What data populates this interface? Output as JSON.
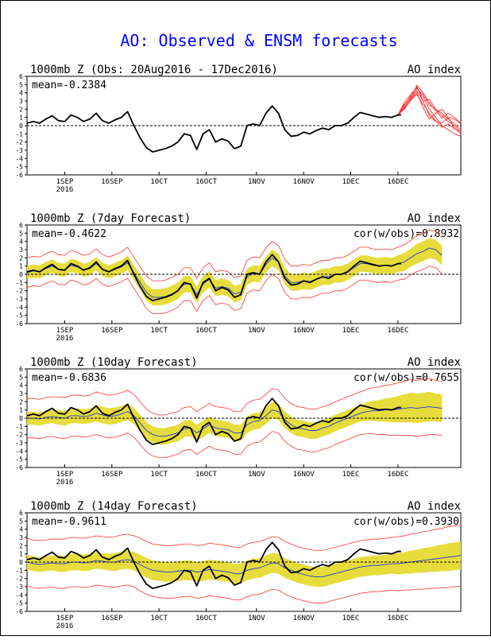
{
  "page": {
    "title": "AO: Observed & ENSM forecasts",
    "title_color": "#0000ff"
  },
  "axis": {
    "yticks": [
      "6",
      "5",
      "4",
      "3",
      "2",
      "1",
      "0",
      "-1",
      "-2",
      "-3",
      "-4",
      "-5",
      "-6"
    ],
    "xticks": [
      "1SEP",
      "16SEP",
      "10CT",
      "16OCT",
      "1NOV",
      "16NOV",
      "1DEC",
      "16DEC"
    ],
    "year_label": "2016"
  },
  "colors": {
    "obs": "#000000",
    "ens_mean": "#1e3cc8",
    "spread_fill": "#e6dc3c",
    "ens_bounds": "#ff3232",
    "zero_line": "#000000"
  },
  "panels": [
    {
      "title": "1000mb Z (Obs: 20Aug2016 - 17Dec2016)",
      "index_label": "AO index",
      "mean_label": "mean=-0.2384",
      "cor_label": ""
    },
    {
      "title": "1000mb Z (7day Forecast)",
      "index_label": "AO index",
      "mean_label": "mean=-0.4622",
      "cor_label": "cor(w/obs)=0.8932"
    },
    {
      "title": "1000mb Z (10day Forecast)",
      "index_label": "AO index",
      "mean_label": "mean=-0.6836",
      "cor_label": "cor(w/obs)=0.7655"
    },
    {
      "title": "1000mb Z (14day Forecast)",
      "index_label": "AO index",
      "mean_label": "mean=-0.9611",
      "cor_label": "cor(w/obs)=0.3930"
    }
  ],
  "chart_data": {
    "type": "line",
    "ylim": [
      -6,
      6
    ],
    "x_tick_days": [
      12,
      27,
      42,
      57,
      73,
      88,
      103,
      118
    ],
    "obs": {
      "x": [
        0,
        2,
        4,
        6,
        8,
        10,
        12,
        14,
        16,
        18,
        20,
        22,
        24,
        26,
        28,
        30,
        32,
        34,
        36,
        38,
        40,
        42,
        44,
        46,
        48,
        50,
        52,
        54,
        56,
        58,
        60,
        62,
        64,
        66,
        68,
        70,
        72,
        74,
        76,
        78,
        80,
        82,
        84,
        86,
        88,
        90,
        92,
        94,
        96,
        98,
        100,
        102,
        104,
        106,
        108,
        110,
        112,
        114,
        116,
        118,
        119
      ],
      "y": [
        0.3,
        0.5,
        0.3,
        0.8,
        1.2,
        0.6,
        0.5,
        1.3,
        1.0,
        0.5,
        0.8,
        1.5,
        0.6,
        0.3,
        0.7,
        1.0,
        1.7,
        0.0,
        -1.5,
        -2.7,
        -3.2,
        -3.0,
        -2.8,
        -2.5,
        -2.0,
        -1.0,
        -1.2,
        -2.9,
        -1.0,
        -0.5,
        -2.0,
        -1.6,
        -1.9,
        -2.8,
        -2.5,
        0.0,
        0.2,
        0.0,
        1.5,
        2.4,
        1.5,
        -0.5,
        -1.3,
        -1.2,
        -0.8,
        -1.0,
        -0.6,
        -0.3,
        -0.5,
        0.0,
        0.0,
        0.3,
        1.0,
        1.6,
        1.4,
        1.2,
        1.0,
        1.1,
        1.0,
        1.3,
        1.3
      ]
    },
    "ensemble_members_obs_panel": [
      {
        "x": [
          118,
          120,
          122,
          124,
          126,
          128,
          130,
          132,
          134,
          136,
          138
        ],
        "y": [
          1.3,
          2.5,
          3.5,
          4.8,
          3.0,
          1.2,
          0.5,
          0.3,
          1.0,
          0.8,
          0.2
        ]
      },
      {
        "x": [
          118,
          120,
          122,
          124,
          126,
          128,
          130,
          132,
          134,
          136,
          138
        ],
        "y": [
          1.3,
          2.0,
          3.0,
          4.5,
          3.8,
          2.5,
          2.0,
          1.5,
          0.8,
          0.2,
          -0.5
        ]
      },
      {
        "x": [
          118,
          120,
          122,
          124,
          126,
          128,
          130,
          132,
          134,
          136,
          138
        ],
        "y": [
          1.3,
          2.2,
          3.2,
          4.0,
          2.2,
          0.8,
          1.5,
          2.0,
          1.0,
          -0.3,
          -1.0
        ]
      },
      {
        "x": [
          118,
          120,
          122,
          124,
          126,
          128,
          130,
          132,
          134,
          136,
          138
        ],
        "y": [
          1.3,
          2.8,
          3.8,
          4.6,
          3.5,
          2.0,
          1.0,
          0.0,
          -0.5,
          -1.0,
          -1.3
        ]
      },
      {
        "x": [
          118,
          120,
          122,
          124,
          126,
          128,
          130,
          132,
          134,
          136,
          138
        ],
        "y": [
          1.3,
          2.4,
          3.6,
          4.2,
          3.0,
          3.2,
          2.0,
          1.2,
          0.5,
          0.0,
          -0.8
        ]
      },
      {
        "x": [
          118,
          120,
          122,
          124,
          126,
          128,
          130,
          132,
          134,
          136,
          138
        ],
        "y": [
          1.3,
          2.1,
          3.3,
          4.9,
          4.0,
          2.8,
          1.8,
          0.9,
          1.5,
          1.0,
          0.3
        ]
      },
      {
        "x": [
          118,
          120,
          122,
          124,
          126,
          128,
          130,
          132,
          134,
          136,
          138
        ],
        "y": [
          1.3,
          2.6,
          3.1,
          3.8,
          2.6,
          1.5,
          0.6,
          -0.2,
          0.2,
          -0.4,
          -0.7
        ]
      }
    ],
    "forecast_7day": {
      "x": [
        0,
        2,
        4,
        6,
        8,
        10,
        12,
        14,
        16,
        18,
        20,
        22,
        24,
        26,
        28,
        30,
        32,
        34,
        36,
        38,
        40,
        42,
        44,
        46,
        48,
        50,
        52,
        54,
        56,
        58,
        60,
        62,
        64,
        66,
        68,
        70,
        72,
        74,
        76,
        78,
        80,
        82,
        84,
        86,
        88,
        90,
        92,
        94,
        96,
        98,
        100,
        102,
        104,
        106,
        108,
        110,
        112,
        114,
        116,
        118,
        120,
        122,
        124,
        126,
        128,
        130,
        132
      ],
      "mean": [
        0.2,
        0.4,
        0.3,
        0.7,
        1.0,
        0.6,
        0.5,
        1.1,
        0.9,
        0.5,
        0.7,
        1.3,
        0.6,
        0.3,
        0.6,
        0.9,
        1.4,
        0.2,
        -1.0,
        -2.2,
        -2.8,
        -2.8,
        -2.7,
        -2.4,
        -2.0,
        -1.2,
        -1.2,
        -2.5,
        -1.2,
        -0.6,
        -1.7,
        -1.5,
        -1.7,
        -2.4,
        -2.2,
        -0.3,
        0.1,
        0.0,
        1.2,
        2.0,
        1.5,
        -0.2,
        -1.0,
        -1.0,
        -0.8,
        -0.9,
        -0.6,
        -0.3,
        -0.3,
        0.0,
        0.0,
        0.3,
        0.8,
        1.3,
        1.3,
        1.1,
        1.0,
        1.1,
        1.0,
        1.3,
        1.5,
        2.0,
        2.5,
        2.8,
        3.2,
        3.0,
        2.3
      ],
      "spread": [
        0.8,
        0.8,
        0.8,
        0.8,
        0.8,
        0.8,
        0.8,
        0.8,
        0.8,
        0.8,
        0.8,
        0.8,
        0.8,
        0.8,
        0.8,
        0.8,
        0.9,
        0.9,
        0.9,
        1.0,
        1.0,
        1.0,
        1.0,
        1.0,
        1.0,
        1.0,
        1.0,
        1.0,
        1.0,
        1.0,
        1.0,
        1.0,
        1.0,
        1.0,
        1.0,
        1.0,
        1.0,
        1.0,
        1.0,
        1.0,
        1.0,
        1.0,
        1.0,
        1.0,
        1.0,
        1.0,
        1.0,
        1.0,
        1.0,
        1.0,
        1.0,
        1.0,
        1.0,
        1.0,
        1.0,
        1.0,
        1.0,
        1.0,
        1.0,
        1.0,
        1.1,
        1.1,
        1.2,
        1.2,
        1.2,
        1.2,
        1.2
      ],
      "extreme": 1.0
    },
    "forecast_10day": {
      "x": [
        0,
        2,
        4,
        6,
        8,
        10,
        12,
        14,
        16,
        18,
        20,
        22,
        24,
        26,
        28,
        30,
        32,
        34,
        36,
        38,
        40,
        42,
        44,
        46,
        48,
        50,
        52,
        54,
        56,
        58,
        60,
        62,
        64,
        66,
        68,
        70,
        72,
        74,
        76,
        78,
        80,
        82,
        84,
        86,
        88,
        90,
        92,
        94,
        96,
        98,
        100,
        102,
        104,
        106,
        108,
        110,
        112,
        114,
        116,
        118,
        120,
        122,
        124,
        126,
        128,
        130,
        132
      ],
      "mean": [
        0.0,
        0.0,
        -0.1,
        0.1,
        0.2,
        0.1,
        0.0,
        0.3,
        0.3,
        0.2,
        0.3,
        0.6,
        0.4,
        0.2,
        0.3,
        0.5,
        0.8,
        0.3,
        -0.6,
        -1.5,
        -2.0,
        -2.2,
        -2.2,
        -2.0,
        -1.8,
        -1.3,
        -1.2,
        -1.8,
        -1.3,
        -0.8,
        -1.2,
        -1.3,
        -1.4,
        -1.8,
        -1.8,
        -0.8,
        -0.4,
        -0.3,
        0.3,
        1.0,
        0.8,
        -0.2,
        -0.8,
        -1.2,
        -1.3,
        -1.5,
        -1.5,
        -1.2,
        -1.0,
        -0.6,
        -0.3,
        0.0,
        0.3,
        0.6,
        0.8,
        0.9,
        0.9,
        1.0,
        1.0,
        1.1,
        1.2,
        1.3,
        1.2,
        1.3,
        1.4,
        1.3,
        1.2
      ],
      "spread": [
        0.8,
        0.8,
        0.8,
        0.8,
        0.8,
        0.9,
        0.9,
        0.9,
        0.9,
        0.9,
        0.9,
        1.0,
        1.0,
        1.0,
        1.0,
        1.0,
        1.0,
        1.0,
        1.0,
        1.0,
        1.0,
        1.0,
        1.0,
        1.0,
        1.0,
        1.0,
        1.0,
        1.0,
        1.0,
        1.0,
        1.0,
        1.0,
        1.0,
        1.0,
        1.0,
        1.0,
        1.0,
        1.0,
        1.0,
        1.0,
        1.0,
        1.0,
        1.0,
        1.0,
        1.0,
        1.0,
        1.0,
        1.0,
        1.0,
        1.0,
        1.0,
        1.0,
        1.0,
        1.0,
        1.1,
        1.2,
        1.3,
        1.4,
        1.5,
        1.6,
        1.7,
        1.8,
        1.8,
        1.8,
        1.8,
        1.7,
        1.7
      ],
      "extreme": 1.6
    },
    "forecast_14day": {
      "x": [
        0,
        2,
        4,
        6,
        8,
        10,
        12,
        14,
        16,
        18,
        20,
        22,
        24,
        26,
        28,
        30,
        32,
        34,
        36,
        38,
        40,
        42,
        44,
        46,
        48,
        50,
        52,
        54,
        56,
        58,
        60,
        62,
        64,
        66,
        68,
        70,
        72,
        74,
        76,
        78,
        80,
        82,
        84,
        86,
        88,
        90,
        92,
        94,
        96,
        98,
        100,
        102,
        104,
        106,
        108,
        110,
        112,
        114,
        116,
        118,
        120,
        122,
        124,
        126,
        128,
        130,
        132,
        134,
        136,
        138
      ],
      "mean": [
        0.0,
        -0.2,
        -0.3,
        -0.2,
        -0.1,
        -0.2,
        -0.2,
        0.0,
        0.0,
        -0.1,
        0.0,
        0.2,
        0.1,
        0.0,
        0.0,
        0.2,
        0.3,
        0.1,
        -0.3,
        -0.7,
        -1.0,
        -1.1,
        -1.2,
        -1.2,
        -1.1,
        -1.0,
        -1.0,
        -1.2,
        -1.1,
        -0.9,
        -1.0,
        -1.1,
        -1.2,
        -1.4,
        -1.4,
        -1.0,
        -0.8,
        -0.7,
        -0.4,
        -0.1,
        -0.2,
        -0.7,
        -1.0,
        -1.3,
        -1.5,
        -1.7,
        -1.8,
        -1.8,
        -1.6,
        -1.4,
        -1.2,
        -1.0,
        -0.8,
        -0.6,
        -0.5,
        -0.4,
        -0.4,
        -0.3,
        -0.2,
        -0.2,
        -0.1,
        0.0,
        0.1,
        0.2,
        0.3,
        0.4,
        0.5,
        0.6,
        0.7,
        0.8
      ],
      "spread": [
        0.9,
        0.9,
        0.9,
        0.9,
        0.9,
        1.0,
        1.0,
        1.0,
        1.0,
        1.0,
        1.0,
        1.0,
        1.0,
        1.0,
        1.1,
        1.1,
        1.1,
        1.1,
        1.2,
        1.2,
        1.2,
        1.2,
        1.2,
        1.2,
        1.2,
        1.2,
        1.2,
        1.2,
        1.2,
        1.2,
        1.2,
        1.2,
        1.2,
        1.2,
        1.2,
        1.2,
        1.2,
        1.2,
        1.2,
        1.2,
        1.2,
        1.2,
        1.2,
        1.2,
        1.2,
        1.2,
        1.2,
        1.2,
        1.2,
        1.2,
        1.2,
        1.2,
        1.2,
        1.2,
        1.2,
        1.2,
        1.2,
        1.2,
        1.2,
        1.3,
        1.3,
        1.4,
        1.4,
        1.5,
        1.5,
        1.6,
        1.6,
        1.7,
        1.7,
        1.7
      ],
      "extreme": 2.0
    }
  }
}
